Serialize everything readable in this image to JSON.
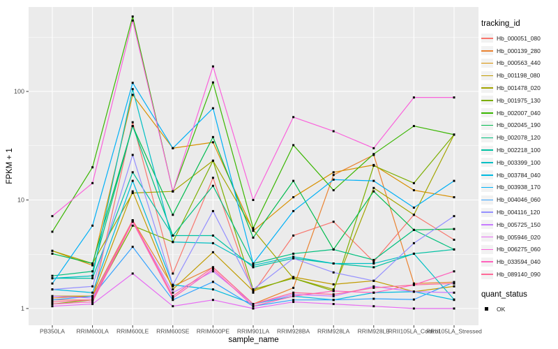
{
  "colors": {
    "panel_bg": "#EBEBEB",
    "grid": "#FFFFFF",
    "axis_text": "#4D4D4D",
    "tick_mark": "#333333",
    "point": "#000000",
    "legend_key_bg": "#F2F2F2"
  },
  "chart_data": {
    "type": "line",
    "title": "",
    "xlabel": "sample_name",
    "ylabel": "FPKM + 1",
    "y_scale": "log10",
    "ylim": [
      0.7,
      560
    ],
    "y_ticks": [
      1,
      10,
      100
    ],
    "y_minor_ticks": [
      3.162,
      31.62,
      316.2
    ],
    "grid": "on",
    "legend_position": "right",
    "legend_title": "tracking_id",
    "point_legend": {
      "title": "quant_status",
      "label": "OK"
    },
    "categories": [
      "PB350LA",
      "RRIM600LA",
      "RRIM600LE",
      "RRIM600SE",
      "RRIM600PE",
      "RRIM901LA",
      "RRIM928BA",
      "RRIM928LA",
      "RRIM928LB",
      "RRII105LA_Control",
      "RRII105LA_Stressed"
    ],
    "series": [
      {
        "name": "Hb_000051_080",
        "color": "#F8766D",
        "values": [
          1.2,
          1.2,
          52,
          2.1,
          16,
          1.4,
          4.7,
          6.3,
          2.7,
          7.3,
          4.3
        ]
      },
      {
        "name": "Hb_000139_280",
        "color": "#EA8331",
        "values": [
          1.25,
          1.3,
          6.5,
          1.6,
          2.4,
          1.1,
          1.55,
          17,
          26,
          1.7,
          1.75
        ]
      },
      {
        "name": "Hb_000563_440",
        "color": "#D89000",
        "values": [
          3.4,
          2.5,
          93,
          30,
          34,
          5.2,
          10.6,
          18,
          21,
          12.3,
          10.6
        ]
      },
      {
        "name": "Hb_001198_080",
        "color": "#C09B00",
        "values": [
          1.3,
          1.3,
          12,
          1.5,
          3.3,
          1.45,
          1.95,
          1.67,
          1.8,
          1.43,
          1.6
        ]
      },
      {
        "name": "Hb_001478_020",
        "color": "#A3A500",
        "values": [
          3.4,
          2.6,
          11.6,
          12,
          23,
          5.3,
          1.9,
          1.5,
          12.9,
          7.3,
          40
        ]
      },
      {
        "name": "Hb_001975_130",
        "color": "#7CAE00",
        "values": [
          1.1,
          1.2,
          5.8,
          4.1,
          23,
          1.5,
          1.9,
          1.45,
          20.7,
          14.3,
          40
        ]
      },
      {
        "name": "Hb_002007_040",
        "color": "#39B600",
        "values": [
          5.1,
          20,
          490,
          12,
          121,
          5.5,
          32,
          12.3,
          26.5,
          48,
          40
        ]
      },
      {
        "name": "Hb_002045_190",
        "color": "#00BB4E",
        "values": [
          3.2,
          2.6,
          48,
          7.3,
          38,
          4.5,
          15,
          3.5,
          12,
          5.3,
          5.4
        ]
      },
      {
        "name": "Hb_002078_120",
        "color": "#00BF7D",
        "values": [
          2.0,
          2.2,
          48,
          4.7,
          13.5,
          2.6,
          3.2,
          3.5,
          2.8,
          5.3,
          3.5
        ]
      },
      {
        "name": "Hb_002218_100",
        "color": "#00C1A3",
        "values": [
          1.9,
          1.9,
          18,
          4.7,
          4.7,
          2.4,
          2.9,
          2.6,
          2.4,
          3.2,
          3.5
        ]
      },
      {
        "name": "Hb_003399_100",
        "color": "#00BFC4",
        "values": [
          1.9,
          2.0,
          105,
          4.1,
          4.0,
          2.5,
          3.0,
          2.6,
          2.6,
          3.2,
          1.21
        ]
      },
      {
        "name": "Hb_003784_040",
        "color": "#00BAE0",
        "values": [
          1.5,
          1.4,
          15,
          1.65,
          1.5,
          1.1,
          1.3,
          1.2,
          1.4,
          1.43,
          1.2
        ]
      },
      {
        "name": "Hb_003938_170",
        "color": "#00B0F6",
        "values": [
          1.7,
          5.8,
          120,
          30,
          70,
          2.6,
          7.9,
          15.4,
          15,
          8.5,
          15
        ]
      },
      {
        "name": "Hb_004046_060",
        "color": "#35A2FF",
        "values": [
          1.2,
          1.3,
          3.7,
          1.2,
          1.76,
          1.05,
          1.2,
          1.2,
          1.23,
          1.21,
          1.75
        ]
      },
      {
        "name": "Hb_004116_120",
        "color": "#9590FF",
        "values": [
          1.5,
          1.6,
          26,
          1.65,
          7.9,
          1.5,
          2.9,
          2.15,
          1.8,
          4.0,
          7.1
        ]
      },
      {
        "name": "Hb_005725_150",
        "color": "#C77CFF",
        "values": [
          1.3,
          1.25,
          6.4,
          1.4,
          2.2,
          1.1,
          1.35,
          1.3,
          1.6,
          1.43,
          1.4
        ]
      },
      {
        "name": "Hb_005946_020",
        "color": "#E76BF3",
        "values": [
          1.05,
          1.1,
          2.1,
          1.05,
          1.2,
          1.0,
          1.15,
          1.1,
          1.05,
          1.0,
          1.0
        ]
      },
      {
        "name": "Hb_006275_060",
        "color": "#FA62DB",
        "values": [
          7.1,
          14.3,
          450,
          12,
          170,
          10,
          58,
          43,
          30,
          88,
          88
        ]
      },
      {
        "name": "Hb_033594_040",
        "color": "#FF62BC",
        "values": [
          1.1,
          1.15,
          6.3,
          1.25,
          2.3,
          1.05,
          1.3,
          1.45,
          1.4,
          1.65,
          2.2
        ]
      },
      {
        "name": "Hb_089140_090",
        "color": "#FF6A98",
        "values": [
          1.15,
          1.2,
          6.5,
          1.3,
          2.4,
          1.1,
          1.4,
          1.35,
          1.55,
          1.65,
          1.7
        ]
      }
    ]
  }
}
